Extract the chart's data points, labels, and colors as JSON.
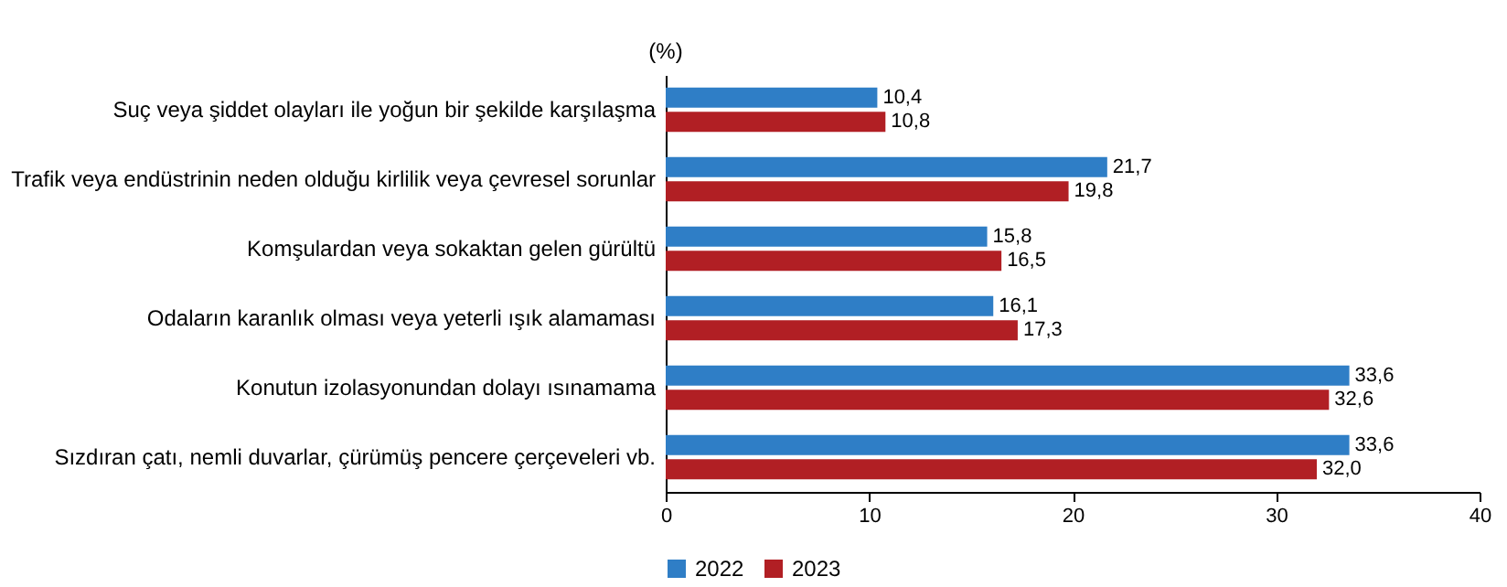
{
  "chart_data": {
    "type": "bar",
    "orientation": "horizontal",
    "xlabel": "(%)",
    "categories": [
      "Suç veya şiddet olayları ile yoğun bir şekilde karşılaşma",
      "Trafik veya endüstrinin neden olduğu kirlilik veya çevresel sorunlar",
      "Komşulardan veya sokaktan gelen gürültü",
      "Odaların karanlık olması veya yeterli ışık alamaması",
      "Konutun izolasyonundan dolayı ısınamama",
      "Sızdıran çatı, nemli duvarlar, çürümüş pencere çerçeveleri vb."
    ],
    "series": [
      {
        "name": "2022",
        "color": "#2f7ec6",
        "values": [
          10.4,
          21.7,
          15.8,
          16.1,
          33.6,
          33.6
        ],
        "value_labels": [
          "10,4",
          "21,7",
          "15,8",
          "16,1",
          "33,6",
          "33,6"
        ]
      },
      {
        "name": "2023",
        "color": "#b11f24",
        "values": [
          10.8,
          19.8,
          16.5,
          17.3,
          32.6,
          32.0
        ],
        "value_labels": [
          "10,8",
          "19,8",
          "16,5",
          "17,3",
          "32,6",
          "32,0"
        ]
      }
    ],
    "xlim": [
      0,
      40
    ],
    "xticks": [
      0,
      10,
      20,
      30,
      40
    ],
    "grid": false,
    "legend": "bottom"
  }
}
